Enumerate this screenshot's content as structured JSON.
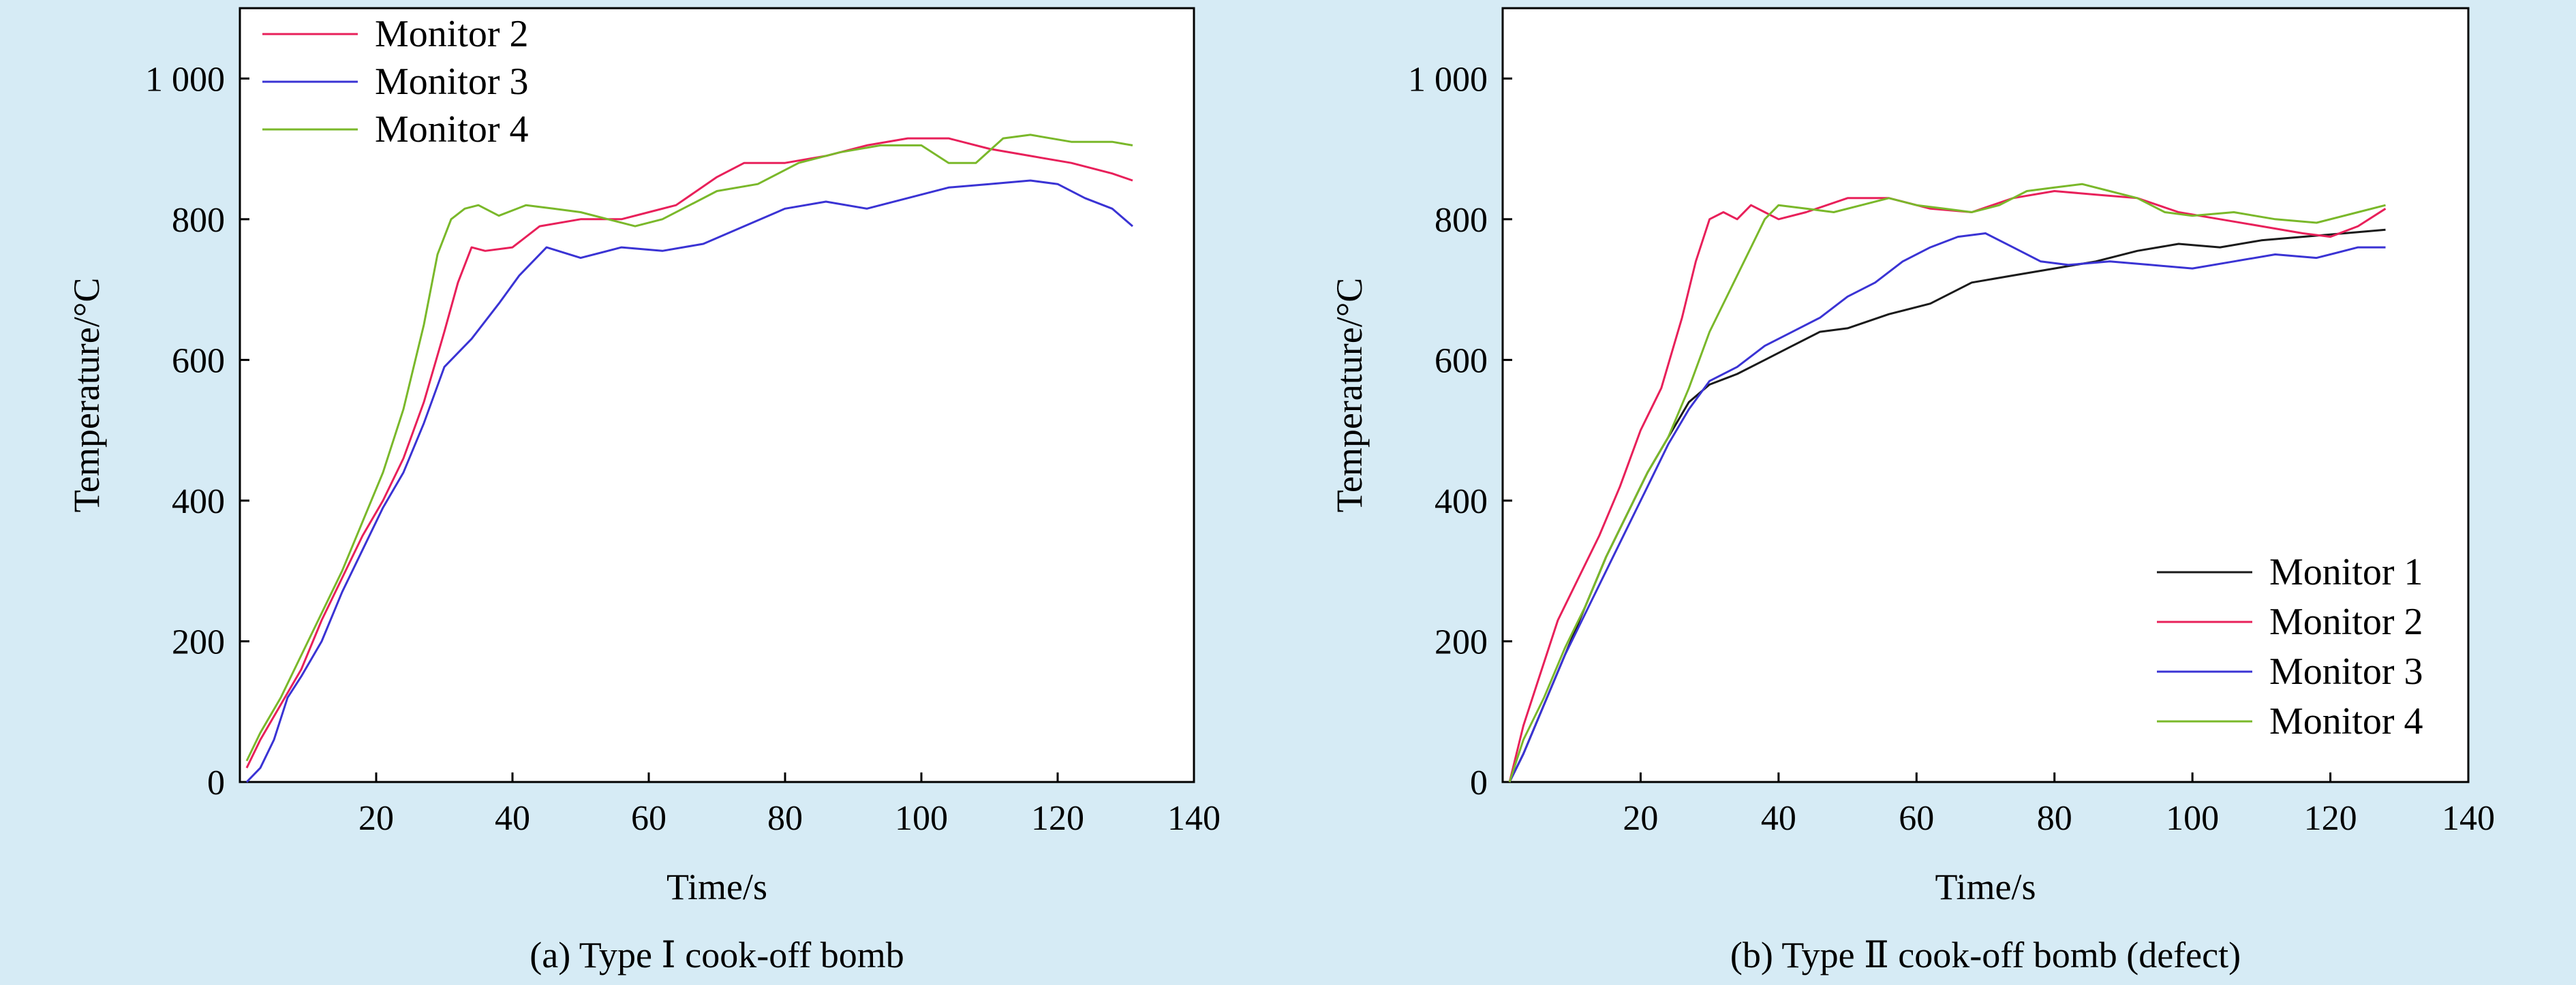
{
  "figure": {
    "background": "#d6ebf5",
    "colors": {
      "Monitor 1": "#1a1a1a",
      "Monitor 2": "#e8205a",
      "Monitor 3": "#3a33d4",
      "Monitor 4": "#7ab82a",
      "grayline": "#8c8c8c"
    }
  },
  "chart_data": [
    {
      "type": "line",
      "caption": "(a) Type Ⅰ cook-off bomb",
      "xlabel": "Time/s",
      "ylabel": "Temperature/°C",
      "xlim": [
        0,
        140
      ],
      "ylim": [
        0,
        1100
      ],
      "xticks": [
        20,
        40,
        60,
        80,
        100,
        120,
        140
      ],
      "xtick_labels": [
        "20",
        "40",
        "60",
        "80",
        "100",
        "120",
        "140"
      ],
      "yticks": [
        0,
        200,
        400,
        600,
        800,
        1000
      ],
      "ytick_labels": [
        "0",
        "200",
        "400",
        "600",
        "800",
        "1 000"
      ],
      "legend_position": "top-left",
      "legend": [
        "Monitor 2",
        "Monitor 3",
        "Monitor 4"
      ],
      "series": [
        {
          "name": "Monitor 2",
          "color": "#e8205a",
          "x": [
            1,
            3,
            6,
            9,
            12,
            15,
            18,
            21,
            24,
            27,
            30,
            32,
            34,
            36,
            40,
            44,
            50,
            56,
            60,
            64,
            70,
            74,
            80,
            86,
            92,
            98,
            104,
            110,
            116,
            122,
            128,
            131
          ],
          "y": [
            20,
            60,
            110,
            160,
            230,
            290,
            350,
            400,
            460,
            540,
            640,
            710,
            760,
            755,
            760,
            790,
            800,
            800,
            810,
            820,
            860,
            880,
            880,
            890,
            905,
            915,
            915,
            900,
            890,
            880,
            865,
            855
          ]
        },
        {
          "name": "Monitor 3",
          "color": "#3a33d4",
          "x": [
            1,
            3,
            5,
            7,
            9,
            12,
            15,
            18,
            21,
            24,
            27,
            30,
            34,
            38,
            41,
            45,
            50,
            56,
            62,
            68,
            74,
            80,
            86,
            92,
            98,
            104,
            110,
            116,
            120,
            124,
            128,
            131
          ],
          "y": [
            0,
            20,
            60,
            120,
            150,
            200,
            270,
            330,
            390,
            440,
            510,
            590,
            630,
            680,
            720,
            760,
            745,
            760,
            755,
            765,
            790,
            815,
            825,
            815,
            830,
            845,
            850,
            855,
            850,
            830,
            815,
            790
          ]
        },
        {
          "name": "Monitor 4",
          "color": "#7ab82a",
          "x": [
            1,
            3,
            6,
            9,
            12,
            15,
            18,
            21,
            24,
            27,
            29,
            31,
            33,
            35,
            38,
            42,
            46,
            50,
            54,
            58,
            62,
            66,
            70,
            76,
            82,
            88,
            94,
            100,
            104,
            108,
            112,
            116,
            122,
            128,
            131
          ],
          "y": [
            30,
            70,
            120,
            180,
            240,
            300,
            370,
            440,
            530,
            650,
            750,
            800,
            815,
            820,
            805,
            820,
            815,
            810,
            800,
            790,
            800,
            820,
            840,
            850,
            880,
            895,
            905,
            905,
            880,
            880,
            915,
            920,
            910,
            910,
            905
          ]
        }
      ]
    },
    {
      "type": "line",
      "caption": "(b) Type Ⅱ cook-off bomb (defect)",
      "xlabel": "Time/s",
      "ylabel": "Temperature/°C",
      "xlim": [
        0,
        140
      ],
      "ylim": [
        0,
        1100
      ],
      "xticks": [
        20,
        40,
        60,
        80,
        100,
        120,
        140
      ],
      "xtick_labels": [
        "20",
        "40",
        "60",
        "80",
        "100",
        "120",
        "140"
      ],
      "yticks": [
        0,
        200,
        400,
        600,
        800,
        1000
      ],
      "ytick_labels": [
        "0",
        "200",
        "400",
        "600",
        "800",
        "1 000"
      ],
      "legend_position": "bottom-right",
      "legend": [
        "Monitor 1",
        "Monitor 2",
        "Monitor 3",
        "Monitor 4"
      ],
      "series": [
        {
          "name": "Monitor 1",
          "color": "#1a1a1a",
          "x": [
            1,
            3,
            6,
            9,
            12,
            15,
            18,
            21,
            24,
            27,
            30,
            34,
            38,
            42,
            46,
            50,
            56,
            62,
            68,
            74,
            80,
            86,
            92,
            98,
            104,
            110,
            116,
            122,
            128
          ],
          "y": [
            0,
            40,
            110,
            180,
            250,
            320,
            380,
            440,
            490,
            540,
            565,
            580,
            600,
            620,
            640,
            645,
            665,
            680,
            710,
            720,
            730,
            740,
            755,
            765,
            760,
            770,
            775,
            780,
            785
          ]
        },
        {
          "name": "Monitor 2",
          "color": "#e8205a",
          "x": [
            1,
            3,
            5,
            8,
            11,
            14,
            17,
            20,
            23,
            26,
            28,
            30,
            32,
            34,
            36,
            38,
            40,
            44,
            50,
            56,
            62,
            68,
            74,
            80,
            86,
            92,
            98,
            104,
            110,
            116,
            120,
            124,
            128
          ],
          "y": [
            0,
            80,
            140,
            230,
            290,
            350,
            420,
            500,
            560,
            660,
            740,
            800,
            810,
            800,
            820,
            810,
            800,
            810,
            830,
            830,
            815,
            810,
            830,
            840,
            835,
            830,
            810,
            800,
            790,
            780,
            775,
            790,
            815
          ]
        },
        {
          "name": "Monitor 3",
          "color": "#3a33d4",
          "x": [
            1,
            3,
            6,
            9,
            12,
            15,
            18,
            21,
            24,
            27,
            30,
            34,
            38,
            42,
            46,
            50,
            54,
            58,
            62,
            66,
            70,
            74,
            78,
            82,
            88,
            94,
            100,
            106,
            112,
            118,
            124,
            128
          ],
          "y": [
            0,
            40,
            110,
            180,
            240,
            300,
            360,
            420,
            480,
            530,
            570,
            590,
            620,
            640,
            660,
            690,
            710,
            740,
            760,
            775,
            780,
            760,
            740,
            735,
            740,
            735,
            730,
            740,
            750,
            745,
            760,
            760
          ]
        },
        {
          "name": "Monitor 4",
          "color": "#7ab82a",
          "x": [
            1,
            3,
            6,
            9,
            12,
            15,
            18,
            21,
            24,
            27,
            30,
            33,
            36,
            38,
            40,
            44,
            48,
            52,
            56,
            60,
            64,
            68,
            72,
            76,
            80,
            84,
            88,
            92,
            96,
            100,
            106,
            112,
            118,
            124,
            128
          ],
          "y": [
            0,
            60,
            120,
            190,
            250,
            320,
            380,
            440,
            490,
            560,
            640,
            700,
            760,
            800,
            820,
            815,
            810,
            820,
            830,
            820,
            815,
            810,
            820,
            840,
            845,
            850,
            840,
            830,
            810,
            805,
            810,
            800,
            795,
            810,
            820
          ]
        }
      ]
    }
  ]
}
